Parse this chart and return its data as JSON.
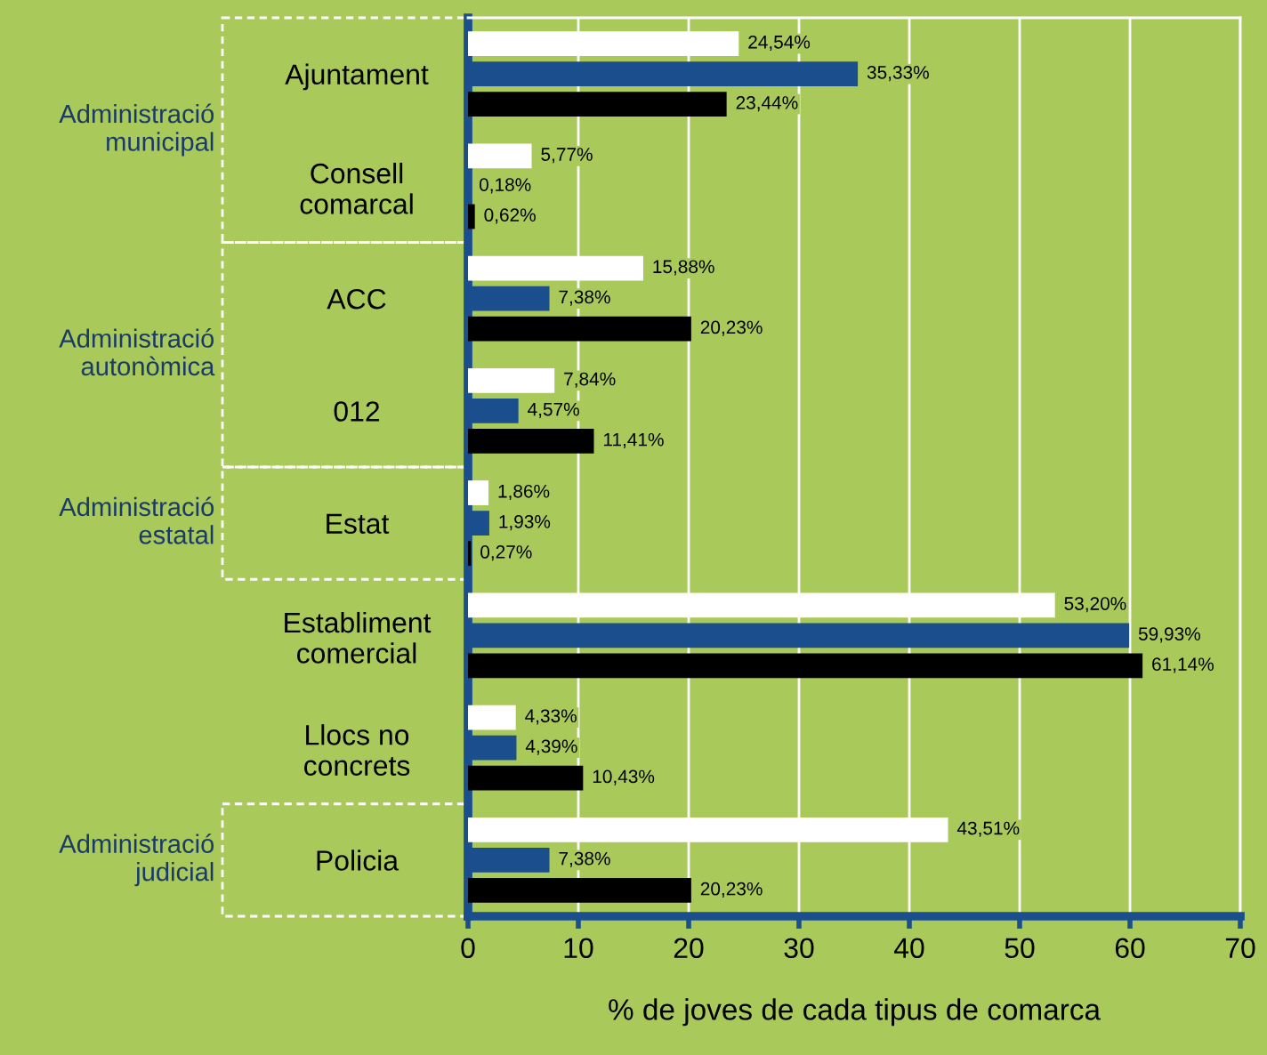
{
  "chart_data": {
    "type": "bar",
    "orientation": "horizontal",
    "xlabel": "% de joves de cada tipus de comarca",
    "categories": [
      "Ajuntament",
      "Consell\ncomarcal",
      "ACC",
      "012",
      "Estat",
      "Establiment\ncomercial",
      "Llocs no\nconcrets",
      "Policia"
    ],
    "series": [
      {
        "color": "#ffffff",
        "values": [
          24.54,
          5.77,
          15.88,
          7.84,
          1.86,
          53.2,
          4.33,
          43.51
        ],
        "value_labels": [
          "24,54%",
          "5,77%",
          "15,88%",
          "7,84%",
          "1,86%",
          "53,20%",
          "4,33%",
          "43,51%"
        ]
      },
      {
        "color": "#1a4e8c",
        "values": [
          35.33,
          0.18,
          7.38,
          4.57,
          1.93,
          59.93,
          4.39,
          7.38
        ],
        "value_labels": [
          "35,33%",
          "0,18%",
          "7,38%",
          "4,57%",
          "1,93%",
          "59,93%",
          "4,39%",
          "7,38%"
        ]
      },
      {
        "color": "#000000",
        "values": [
          23.44,
          0.62,
          20.23,
          11.41,
          0.27,
          61.14,
          10.43,
          20.23
        ],
        "value_labels": [
          "23,44%",
          "0,62%",
          "20,23%",
          "11,41%",
          "0,27%",
          "61,14%",
          "10,43%",
          "20,23%"
        ]
      }
    ],
    "xlim": [
      0,
      70
    ],
    "xticks": [
      0,
      10,
      20,
      30,
      40,
      50,
      60,
      70
    ],
    "grid": "x",
    "annotations": [
      "Administració\nmunicipal",
      "Administració\nautonòmica",
      "Administració\nestatal",
      "Administració\njudicial"
    ]
  }
}
